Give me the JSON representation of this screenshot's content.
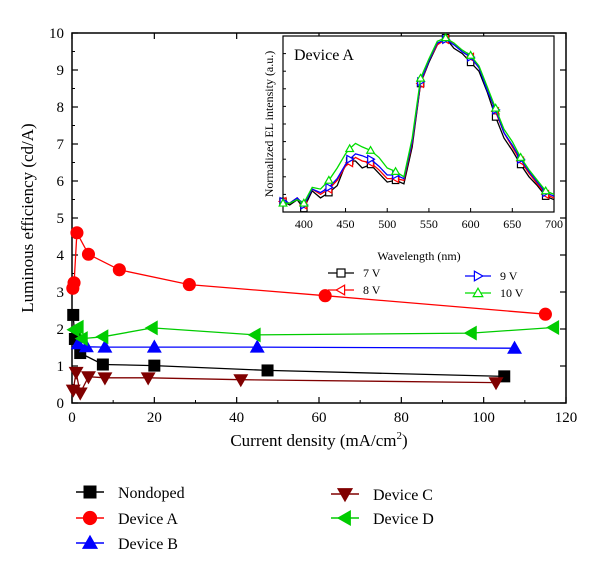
{
  "chart_data": [
    {
      "type": "line",
      "role": "main",
      "xlabel": "Current density (mA/cm",
      "xlabel_sup": "2",
      "xlabel_end": ")",
      "ylabel": "Luminous efficiency (cd/A)",
      "xlim": [
        0,
        120
      ],
      "ylim": [
        0,
        10
      ],
      "xticks": [
        0,
        20,
        40,
        60,
        80,
        100,
        120
      ],
      "yticks": [
        0,
        1,
        2,
        3,
        4,
        5,
        6,
        7,
        8,
        9,
        10
      ],
      "grid": false,
      "legend_position": "bottom",
      "series": [
        {
          "name": "Nondoped",
          "marker": "square",
          "color": "#000000",
          "x": [
            0.3,
            0.7,
            2,
            7.5,
            20,
            47.5,
            105
          ],
          "y": [
            2.38,
            1.73,
            1.35,
            1.04,
            1.01,
            0.88,
            0.72
          ]
        },
        {
          "name": "Device A",
          "marker": "circle",
          "color": "#ff0000",
          "x": [
            0.2,
            0.5,
            1.2,
            4,
            11.5,
            28.5,
            61.5,
            115
          ],
          "y": [
            3.1,
            3.25,
            4.6,
            4.02,
            3.6,
            3.2,
            2.9,
            2.4
          ]
        },
        {
          "name": "Device B",
          "marker": "triangle-up",
          "color": "#0000ff",
          "x": [
            1.5,
            3.5,
            8,
            20,
            45,
            107.5
          ],
          "y": [
            1.6,
            1.52,
            1.51,
            1.51,
            1.51,
            1.48
          ]
        },
        {
          "name": "Device C",
          "marker": "triangle-down",
          "color": "#800000",
          "x": [
            0.3,
            1.0,
            2.0,
            4.0,
            8.0,
            18.5,
            41,
            103
          ],
          "y": [
            0.35,
            0.83,
            0.27,
            0.71,
            0.68,
            0.68,
            0.63,
            0.55
          ]
        },
        {
          "name": "Device D",
          "marker": "triangle-left",
          "color": "#00cc00",
          "x": [
            0.5,
            1.5,
            2.5,
            7.5,
            19.5,
            44.5,
            97,
            117
          ],
          "y": [
            1.98,
            2.05,
            1.74,
            1.79,
            2.03,
            1.84,
            1.89,
            2.04
          ]
        }
      ]
    },
    {
      "type": "line",
      "role": "inset",
      "title": "Device A",
      "xlabel": "Wavelength (nm)",
      "ylabel": "Normalized EL intensity (a.u.)",
      "xlim": [
        375,
        700
      ],
      "ylim": [
        0,
        1
      ],
      "xticks": [
        400,
        450,
        500,
        550,
        600,
        650,
        700
      ],
      "grid": false,
      "legend_position": "below inset",
      "series": [
        {
          "name": "7 V",
          "marker": "open-square",
          "color": "#000000",
          "x": [
            375,
            383,
            392,
            400,
            410,
            420,
            430,
            440,
            450,
            455,
            462,
            470,
            480,
            490,
            500,
            510,
            520,
            530,
            540,
            550,
            560,
            570,
            580,
            590,
            600,
            610,
            620,
            630,
            640,
            650,
            660,
            670,
            680,
            690,
            700
          ],
          "y": [
            0.06,
            0.04,
            0.07,
            0.02,
            0.12,
            0.08,
            0.11,
            0.15,
            0.27,
            0.29,
            0.29,
            0.25,
            0.27,
            0.22,
            0.17,
            0.18,
            0.16,
            0.37,
            0.73,
            0.85,
            0.95,
            0.99,
            0.93,
            0.9,
            0.85,
            0.8,
            0.68,
            0.54,
            0.42,
            0.35,
            0.27,
            0.2,
            0.15,
            0.09,
            0.07
          ]
        },
        {
          "name": "8 V",
          "marker": "open-triangle-left",
          "color": "#ff0000",
          "x": [
            375,
            383,
            392,
            400,
            410,
            420,
            430,
            440,
            450,
            455,
            462,
            470,
            480,
            490,
            500,
            510,
            520,
            530,
            540,
            550,
            560,
            570,
            580,
            590,
            600,
            610,
            620,
            630,
            640,
            650,
            660,
            670,
            680,
            690,
            700
          ],
          "y": [
            0.06,
            0.05,
            0.08,
            0.04,
            0.13,
            0.1,
            0.13,
            0.18,
            0.26,
            0.28,
            0.31,
            0.29,
            0.28,
            0.24,
            0.19,
            0.19,
            0.18,
            0.39,
            0.73,
            0.86,
            0.95,
            0.98,
            0.96,
            0.91,
            0.88,
            0.82,
            0.7,
            0.57,
            0.45,
            0.37,
            0.29,
            0.22,
            0.16,
            0.1,
            0.08
          ]
        },
        {
          "name": "9 V",
          "marker": "open-triangle-right",
          "color": "#0000ff",
          "x": [
            375,
            383,
            392,
            400,
            410,
            420,
            430,
            440,
            450,
            455,
            462,
            470,
            480,
            490,
            500,
            510,
            520,
            530,
            540,
            550,
            560,
            570,
            580,
            590,
            600,
            610,
            620,
            630,
            640,
            650,
            660,
            670,
            680,
            690,
            700
          ],
          "y": [
            0.06,
            0.05,
            0.08,
            0.04,
            0.13,
            0.11,
            0.14,
            0.19,
            0.27,
            0.3,
            0.33,
            0.32,
            0.3,
            0.26,
            0.21,
            0.21,
            0.19,
            0.4,
            0.74,
            0.86,
            0.96,
            0.98,
            0.95,
            0.91,
            0.88,
            0.82,
            0.69,
            0.58,
            0.45,
            0.38,
            0.3,
            0.23,
            0.17,
            0.11,
            0.09
          ]
        },
        {
          "name": "10 V",
          "marker": "open-triangle-up",
          "color": "#00dd00",
          "x": [
            375,
            383,
            392,
            400,
            410,
            420,
            430,
            440,
            450,
            455,
            462,
            470,
            480,
            490,
            500,
            510,
            520,
            530,
            540,
            550,
            560,
            570,
            580,
            590,
            600,
            610,
            620,
            630,
            640,
            650,
            660,
            670,
            680,
            690,
            700
          ],
          "y": [
            0.05,
            0.05,
            0.07,
            0.05,
            0.14,
            0.13,
            0.18,
            0.25,
            0.33,
            0.36,
            0.39,
            0.37,
            0.35,
            0.31,
            0.25,
            0.23,
            0.2,
            0.42,
            0.76,
            0.87,
            0.97,
            0.99,
            0.96,
            0.92,
            0.89,
            0.83,
            0.71,
            0.59,
            0.47,
            0.4,
            0.31,
            0.24,
            0.18,
            0.12,
            0.1
          ]
        }
      ]
    }
  ]
}
